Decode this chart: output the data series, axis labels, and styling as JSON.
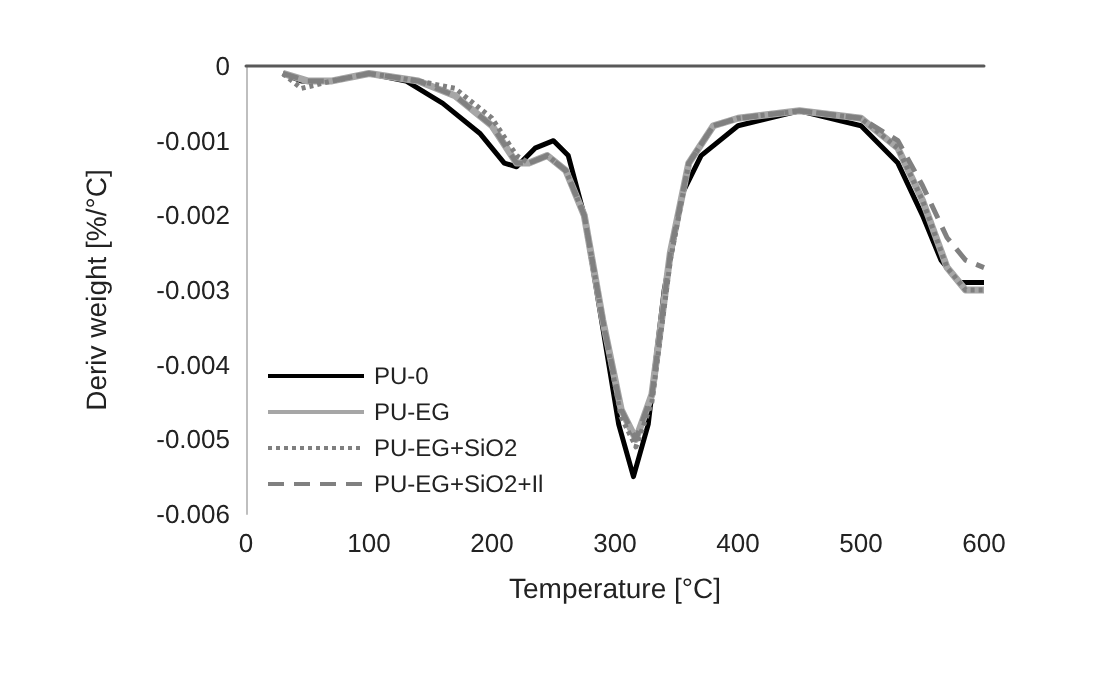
{
  "chart_data": {
    "type": "line",
    "xlabel": "Temperature [°C]",
    "ylabel": "Deriv weight [%/°C]",
    "xlim": [
      0,
      600
    ],
    "xticks": [
      0,
      100,
      200,
      300,
      400,
      500,
      600
    ],
    "ylim": [
      -0.006,
      0
    ],
    "yticks": [
      0,
      -0.001,
      -0.002,
      -0.003,
      -0.004,
      -0.005,
      -0.006
    ],
    "grid": false,
    "legend": "bottom left",
    "marker": "none",
    "series": [
      {
        "name": "PU-0",
        "color": "#000000",
        "line_style": "solid",
        "x": [
          30,
          45,
          70,
          100,
          130,
          160,
          190,
          210,
          220,
          235,
          250,
          262,
          275,
          290,
          303,
          315,
          327,
          340,
          355,
          370,
          400,
          450,
          500,
          530,
          550,
          565,
          580,
          600
        ],
        "values": [
          -0.0001,
          -0.0002,
          -0.0002,
          -0.0001,
          -0.0002,
          -0.0005,
          -0.0009,
          -0.0013,
          -0.00135,
          -0.0011,
          -0.001,
          -0.0012,
          -0.002,
          -0.0035,
          -0.0048,
          -0.0055,
          -0.0048,
          -0.003,
          -0.0017,
          -0.0012,
          -0.0008,
          -0.0006,
          -0.0008,
          -0.0013,
          -0.002,
          -0.0026,
          -0.0029,
          -0.0029
        ]
      },
      {
        "name": "PU-EG",
        "color": "#a6a6a6",
        "line_style": "solid",
        "x": [
          30,
          50,
          70,
          100,
          140,
          170,
          200,
          220,
          230,
          245,
          260,
          275,
          290,
          305,
          317,
          330,
          345,
          360,
          380,
          400,
          450,
          500,
          530,
          550,
          570,
          585,
          600
        ],
        "values": [
          -0.0001,
          -0.0002,
          -0.0002,
          -0.0001,
          -0.0002,
          -0.0004,
          -0.0008,
          -0.0013,
          -0.0013,
          -0.0012,
          -0.0014,
          -0.002,
          -0.0034,
          -0.0046,
          -0.005,
          -0.0044,
          -0.0025,
          -0.0013,
          -0.0008,
          -0.0007,
          -0.0006,
          -0.0007,
          -0.0011,
          -0.0018,
          -0.0027,
          -0.003,
          -0.003
        ]
      },
      {
        "name": "PU-EG+SiO2",
        "color": "#7f7f7f",
        "line_style": "dotted",
        "x": [
          30,
          45,
          70,
          100,
          140,
          170,
          200,
          220,
          230,
          245,
          260,
          275,
          290,
          305,
          317,
          330,
          345,
          360,
          380,
          400,
          450,
          500,
          530,
          550,
          570,
          585,
          600
        ],
        "values": [
          -0.0001,
          -0.0003,
          -0.0002,
          -0.0001,
          -0.0002,
          -0.0003,
          -0.0007,
          -0.0012,
          -0.0013,
          -0.0012,
          -0.0014,
          -0.002,
          -0.0034,
          -0.0047,
          -0.0051,
          -0.0045,
          -0.0026,
          -0.0013,
          -0.0008,
          -0.0007,
          -0.0006,
          -0.0007,
          -0.0011,
          -0.0018,
          -0.0027,
          -0.003,
          -0.003
        ]
      },
      {
        "name": "PU-EG+SiO2+Il",
        "color": "#808080",
        "line_style": "dashed",
        "x": [
          30,
          50,
          70,
          100,
          140,
          170,
          200,
          220,
          230,
          245,
          260,
          275,
          290,
          305,
          317,
          330,
          345,
          360,
          380,
          400,
          450,
          500,
          530,
          550,
          570,
          585,
          600
        ],
        "values": [
          -0.0001,
          -0.0002,
          -0.0002,
          -0.0001,
          -0.0002,
          -0.0004,
          -0.0008,
          -0.0013,
          -0.0013,
          -0.0012,
          -0.0014,
          -0.002,
          -0.0034,
          -0.0046,
          -0.005,
          -0.0044,
          -0.0025,
          -0.0013,
          -0.0008,
          -0.0007,
          -0.0006,
          -0.0007,
          -0.001,
          -0.0016,
          -0.0023,
          -0.0026,
          -0.0027
        ]
      }
    ]
  }
}
